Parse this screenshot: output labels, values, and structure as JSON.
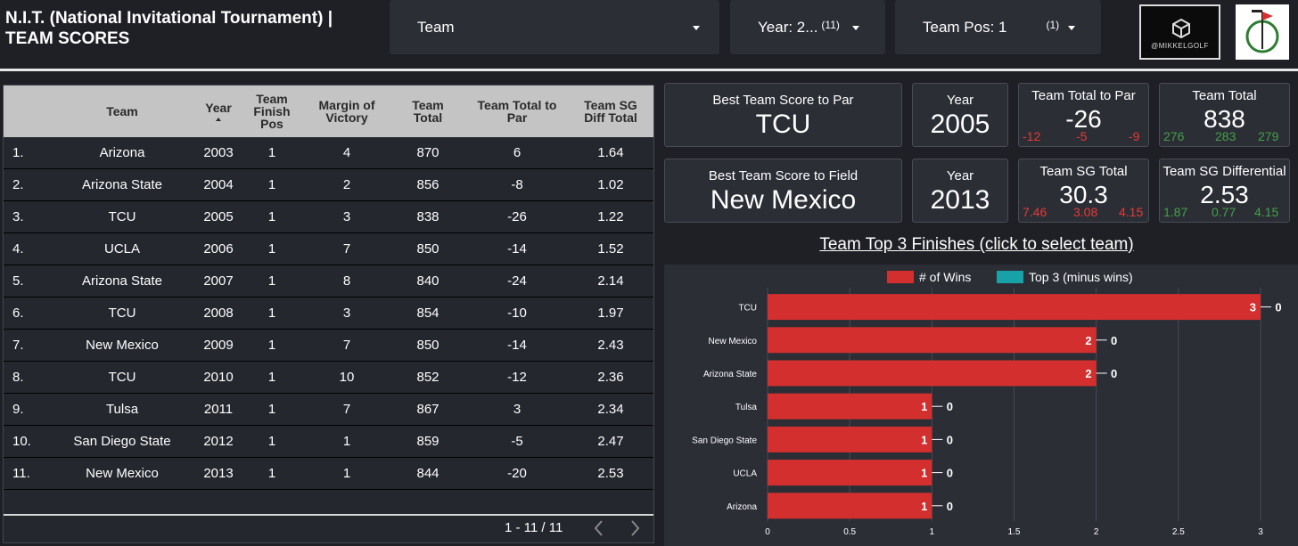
{
  "header": {
    "title_line1": "N.I.T. (National Invitational Tournament) |",
    "title_line2": "TEAM SCORES",
    "filters": [
      {
        "label": "Team",
        "count": ""
      },
      {
        "label": "Year: 2...",
        "count": "(11)"
      },
      {
        "label": "Team Pos: 1",
        "count": "(1)"
      }
    ],
    "logo1_text": "@MIKKELGOLF"
  },
  "table": {
    "columns": [
      "Team",
      "Year",
      "Team Finish Pos",
      "Margin of Victory",
      "Team Total",
      "Team Total to Par",
      "Team SG Diff Total"
    ],
    "rows": [
      [
        "1.",
        "Arizona",
        "2003",
        "1",
        "4",
        "870",
        "6",
        "1.64"
      ],
      [
        "2.",
        "Arizona State",
        "2004",
        "1",
        "2",
        "856",
        "-8",
        "1.02"
      ],
      [
        "3.",
        "TCU",
        "2005",
        "1",
        "3",
        "838",
        "-26",
        "1.22"
      ],
      [
        "4.",
        "UCLA",
        "2006",
        "1",
        "7",
        "850",
        "-14",
        "1.52"
      ],
      [
        "5.",
        "Arizona State",
        "2007",
        "1",
        "8",
        "840",
        "-24",
        "2.14"
      ],
      [
        "6.",
        "TCU",
        "2008",
        "1",
        "3",
        "854",
        "-10",
        "1.97"
      ],
      [
        "7.",
        "New Mexico",
        "2009",
        "1",
        "7",
        "850",
        "-14",
        "2.43"
      ],
      [
        "8.",
        "TCU",
        "2010",
        "1",
        "10",
        "852",
        "-12",
        "2.36"
      ],
      [
        "9.",
        "Tulsa",
        "2011",
        "1",
        "7",
        "867",
        "3",
        "2.34"
      ],
      [
        "10.",
        "San Diego State",
        "2012",
        "1",
        "1",
        "859",
        "-5",
        "2.47"
      ],
      [
        "11.",
        "New Mexico",
        "2013",
        "1",
        "1",
        "844",
        "-20",
        "2.53"
      ]
    ],
    "pagination": "1 - 11 / 11"
  },
  "cards": {
    "best_par": {
      "label": "Best Team Score to Par",
      "value": "TCU"
    },
    "year_par": {
      "label": "Year",
      "value": "2005"
    },
    "total_to_par": {
      "label": "Team Total to Par",
      "value": "-26",
      "r1": "-12",
      "r2": "-5",
      "r3": "-9"
    },
    "team_total": {
      "label": "Team Total",
      "value": "838",
      "r1": "276",
      "r2": "283",
      "r3": "279"
    },
    "best_field": {
      "label": "Best Team Score to Field",
      "value": "New Mexico"
    },
    "year_field": {
      "label": "Year",
      "value": "2013"
    },
    "sg_total": {
      "label": "Team SG Total",
      "value": "30.3",
      "r1": "7.46",
      "r2": "3.08",
      "r3": "4.15"
    },
    "sg_diff": {
      "label": "Team SG Differential",
      "value": "2.53",
      "r1": "1.87",
      "r2": "0.77",
      "r3": "4.15"
    }
  },
  "chart_title": "Team Top 3 Finishes (click to select team)",
  "chart_data": {
    "type": "bar",
    "orientation": "horizontal",
    "categories": [
      "TCU",
      "New Mexico",
      "Arizona State",
      "Tulsa",
      "San Diego State",
      "UCLA",
      "Arizona"
    ],
    "series": [
      {
        "name": "# of Wins",
        "color": "#d32f2f",
        "values": [
          3,
          2,
          2,
          1,
          1,
          1,
          1
        ]
      },
      {
        "name": "Top 3 (minus wins)",
        "color": "#17a2a8",
        "values": [
          0,
          0,
          0,
          0,
          0,
          0,
          0
        ]
      }
    ],
    "xlim": [
      0,
      3
    ],
    "xticks": [
      "0",
      "0.5",
      "1",
      "1.5",
      "2",
      "2.5",
      "3"
    ],
    "legend": "top"
  },
  "colors": {
    "red": "#d32f2f",
    "teal": "#17a2a8",
    "bg": "#1f2025",
    "panel": "#2c2e36"
  }
}
